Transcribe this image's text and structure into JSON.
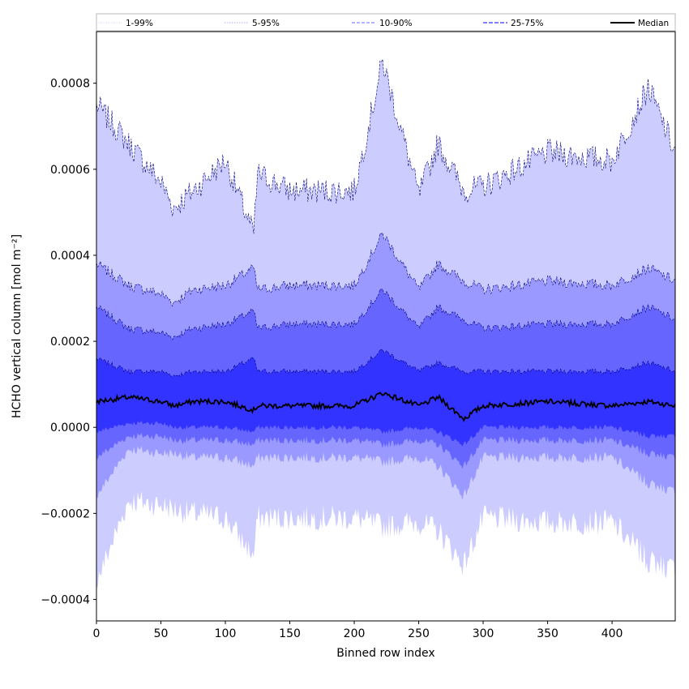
{
  "chart_data": {
    "type": "area",
    "title": "",
    "xlabel": "Binned row index",
    "ylabel": "HCHO vertical column [mol m⁻²]",
    "xlim": [
      0,
      449
    ],
    "ylim": [
      -0.00045,
      0.00092
    ],
    "x_ticks": [
      0,
      50,
      100,
      150,
      200,
      250,
      300,
      350,
      400
    ],
    "x_tick_labels": [
      "0",
      "50",
      "100",
      "150",
      "200",
      "250",
      "300",
      "350",
      "400"
    ],
    "y_ticks": [
      -0.0004,
      -0.0002,
      0.0,
      0.0002,
      0.0004,
      0.0006,
      0.0008
    ],
    "y_tick_labels": [
      "−0.0004",
      "−0.0002",
      "0.0000",
      "0.0002",
      "0.0004",
      "0.0006",
      "0.0008"
    ],
    "grid": false,
    "legend_placement": "top, above plot, horizontal",
    "x": [
      0,
      25,
      50,
      60,
      75,
      100,
      122,
      125,
      150,
      200,
      222,
      250,
      265,
      285,
      300,
      350,
      400,
      428,
      449
    ],
    "series": [
      {
        "name": "1-99%",
        "color": "#ccccff",
        "lower": [
          -0.00036,
          -0.00017,
          -0.00018,
          -0.00019,
          -0.0002,
          -0.00021,
          -0.0003,
          -0.00021,
          -0.00021,
          -0.00021,
          -0.00023,
          -0.00022,
          -0.00024,
          -0.00032,
          -0.00021,
          -0.00022,
          -0.00022,
          -0.00031,
          -0.00033
        ],
        "upper": [
          0.00075,
          0.00066,
          0.00057,
          0.00051,
          0.00055,
          0.00062,
          0.00045,
          0.00059,
          0.00055,
          0.00055,
          0.00085,
          0.00054,
          0.00066,
          0.00055,
          0.00056,
          0.00064,
          0.00062,
          0.00079,
          0.00064
        ]
      },
      {
        "name": "5-95%",
        "color": "#9999ff",
        "lower": [
          -0.00016,
          -5e-05,
          -6e-05,
          -6e-05,
          -7e-05,
          -7e-05,
          -9e-05,
          -7e-05,
          -7e-05,
          -7e-05,
          -8e-05,
          -7e-05,
          -9e-05,
          -0.00016,
          -7e-05,
          -7e-05,
          -7e-05,
          -0.00013,
          -0.00015
        ],
        "upper": [
          0.00038,
          0.00033,
          0.00031,
          0.00029,
          0.00032,
          0.00033,
          0.00037,
          0.00032,
          0.00033,
          0.00033,
          0.00045,
          0.00032,
          0.00038,
          0.00034,
          0.00032,
          0.00034,
          0.00033,
          0.00037,
          0.00034
        ]
      },
      {
        "name": "10-90%",
        "color": "#6666ff",
        "lower": [
          -7e-05,
          -2e-05,
          -2e-05,
          -3e-05,
          -3e-05,
          -3e-05,
          -4e-05,
          -3e-05,
          -3e-05,
          -3e-05,
          -4e-05,
          -3e-05,
          -4e-05,
          -9e-05,
          -3e-05,
          -3e-05,
          -3e-05,
          -6e-05,
          -7e-05
        ],
        "upper": [
          0.00028,
          0.00023,
          0.00022,
          0.00021,
          0.00023,
          0.00024,
          0.00027,
          0.00023,
          0.00024,
          0.00024,
          0.00032,
          0.00023,
          0.00028,
          0.00025,
          0.00023,
          0.00024,
          0.00024,
          0.00028,
          0.00025
        ]
      },
      {
        "name": "25-75%",
        "color": "#3333ff",
        "lower": [
          -1e-05,
          1e-05,
          1e-05,
          0.0,
          0.0,
          0.0,
          -1e-05,
          0.0,
          0.0,
          0.0,
          -1e-05,
          0.0,
          -1e-05,
          -4e-05,
          0.0,
          0.0,
          0.0,
          -2e-05,
          -2e-05
        ],
        "upper": [
          0.00016,
          0.00013,
          0.00013,
          0.00012,
          0.00013,
          0.00013,
          0.00016,
          0.00013,
          0.00013,
          0.00013,
          0.00018,
          0.00013,
          0.00015,
          0.00013,
          0.00013,
          0.00013,
          0.00013,
          0.00015,
          0.00013
        ]
      },
      {
        "name": "Median",
        "color": "#000000",
        "values": [
          6e-05,
          7e-05,
          6e-05,
          5e-05,
          6e-05,
          6e-05,
          4e-05,
          5e-05,
          5e-05,
          5e-05,
          8e-05,
          5e-05,
          7e-05,
          2e-05,
          5e-05,
          6e-05,
          5e-05,
          6e-05,
          5e-05
        ]
      }
    ],
    "legend": [
      {
        "label": "1-99%",
        "color": "#ccccff",
        "dash": "1,1",
        "width": 0.8
      },
      {
        "label": "5-95%",
        "color": "#9999ff",
        "dash": "1.5,1.5",
        "width": 0.8
      },
      {
        "label": "10-90%",
        "color": "#6666ff",
        "dash": "4,2",
        "width": 1.0
      },
      {
        "label": "25-75%",
        "color": "#3333ff",
        "dash": "5,2",
        "width": 1.2
      },
      {
        "label": "Median",
        "color": "#000000",
        "dash": "",
        "width": 2.0
      }
    ],
    "band_edge_color": "#000080"
  }
}
